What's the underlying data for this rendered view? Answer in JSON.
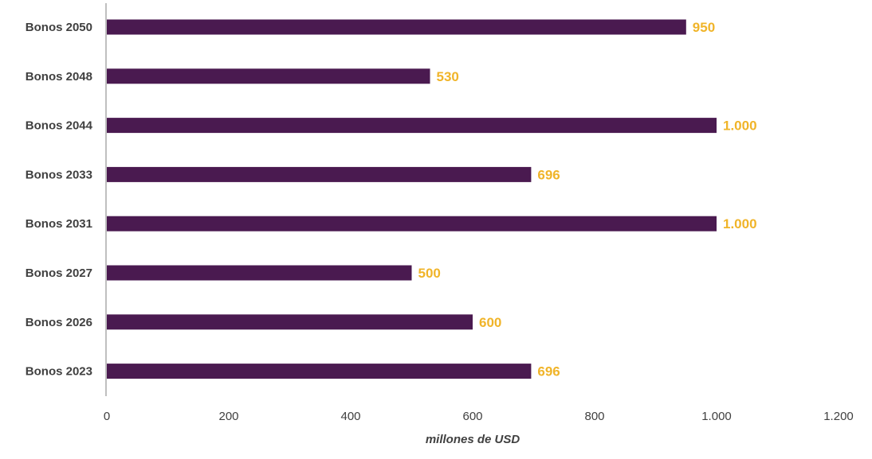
{
  "chart_data": {
    "type": "bar",
    "orientation": "horizontal",
    "categories": [
      "Bonos 2050",
      "Bonos 2048",
      "Bonos 2044",
      "Bonos 2033",
      "Bonos 2031",
      "Bonos 2027",
      "Bonos 2026",
      "Bonos 2023"
    ],
    "values": [
      950,
      530,
      1000,
      696,
      1000,
      500,
      600,
      696
    ],
    "data_labels": [
      "950",
      "530",
      "1.000",
      "696",
      "1.000",
      "500",
      "600",
      "696"
    ],
    "title": "",
    "xlabel": "millones de USD",
    "ylabel": "",
    "xlim": [
      0,
      1200
    ],
    "x_ticks": [
      0,
      200,
      400,
      600,
      800,
      1000,
      1200
    ],
    "x_tick_labels": [
      "0",
      "200",
      "400",
      "600",
      "800",
      "1.000",
      "1.200"
    ],
    "grid": false,
    "legend": "none",
    "colors": {
      "bar": "#4A1A50",
      "data_label": "#F0B429",
      "axis": "#BFBFBF",
      "text": "#404040"
    }
  }
}
